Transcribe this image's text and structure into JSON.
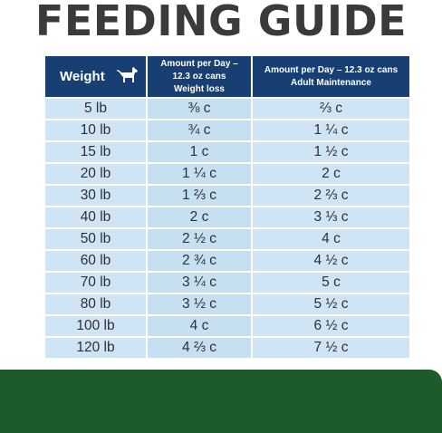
{
  "title": "FEEDING GUIDE",
  "header": {
    "weight": "Weight",
    "weight_icon": "dog-icon",
    "col2_line1": "Amount per Day – 12.3 oz cans",
    "col2_line2": "Weight loss",
    "col3_line1": "Amount per Day – 12.3 oz cans",
    "col3_line2": "Adult Maintenance"
  },
  "rows": [
    {
      "weight": "5 lb",
      "loss": "⅜ c",
      "maint": "⅔ c"
    },
    {
      "weight": "10 lb",
      "loss": "¾ c",
      "maint": "1 ¼ c"
    },
    {
      "weight": "15 lb",
      "loss": "1 c",
      "maint": "1 ½ c"
    },
    {
      "weight": "20 lb",
      "loss": "1 ¼ c",
      "maint": "2 c"
    },
    {
      "weight": "30 lb",
      "loss": "1 ⅔ c",
      "maint": "2 ⅔ c"
    },
    {
      "weight": "40 lb",
      "loss": "2 c",
      "maint": "3 ⅓ c"
    },
    {
      "weight": "50 lb",
      "loss": "2 ½ c",
      "maint": "4 c"
    },
    {
      "weight": "60 lb",
      "loss": "2 ¾ c",
      "maint": "4 ½ c"
    },
    {
      "weight": "70 lb",
      "loss": "3 ¼ c",
      "maint": "5 c"
    },
    {
      "weight": "80 lb",
      "loss": "3 ½ c",
      "maint": "5 ½ c"
    },
    {
      "weight": "100 lb",
      "loss": "4 c",
      "maint": "6 ½ c"
    },
    {
      "weight": "120 lb",
      "loss": "4 ⅔ c",
      "maint": "7 ½ c"
    }
  ],
  "colors": {
    "header_bg": "#173f73",
    "cell_bg": "#cfe5f5",
    "title_text": "#3a3a3c",
    "footer_bar": "#1e5b2c"
  }
}
